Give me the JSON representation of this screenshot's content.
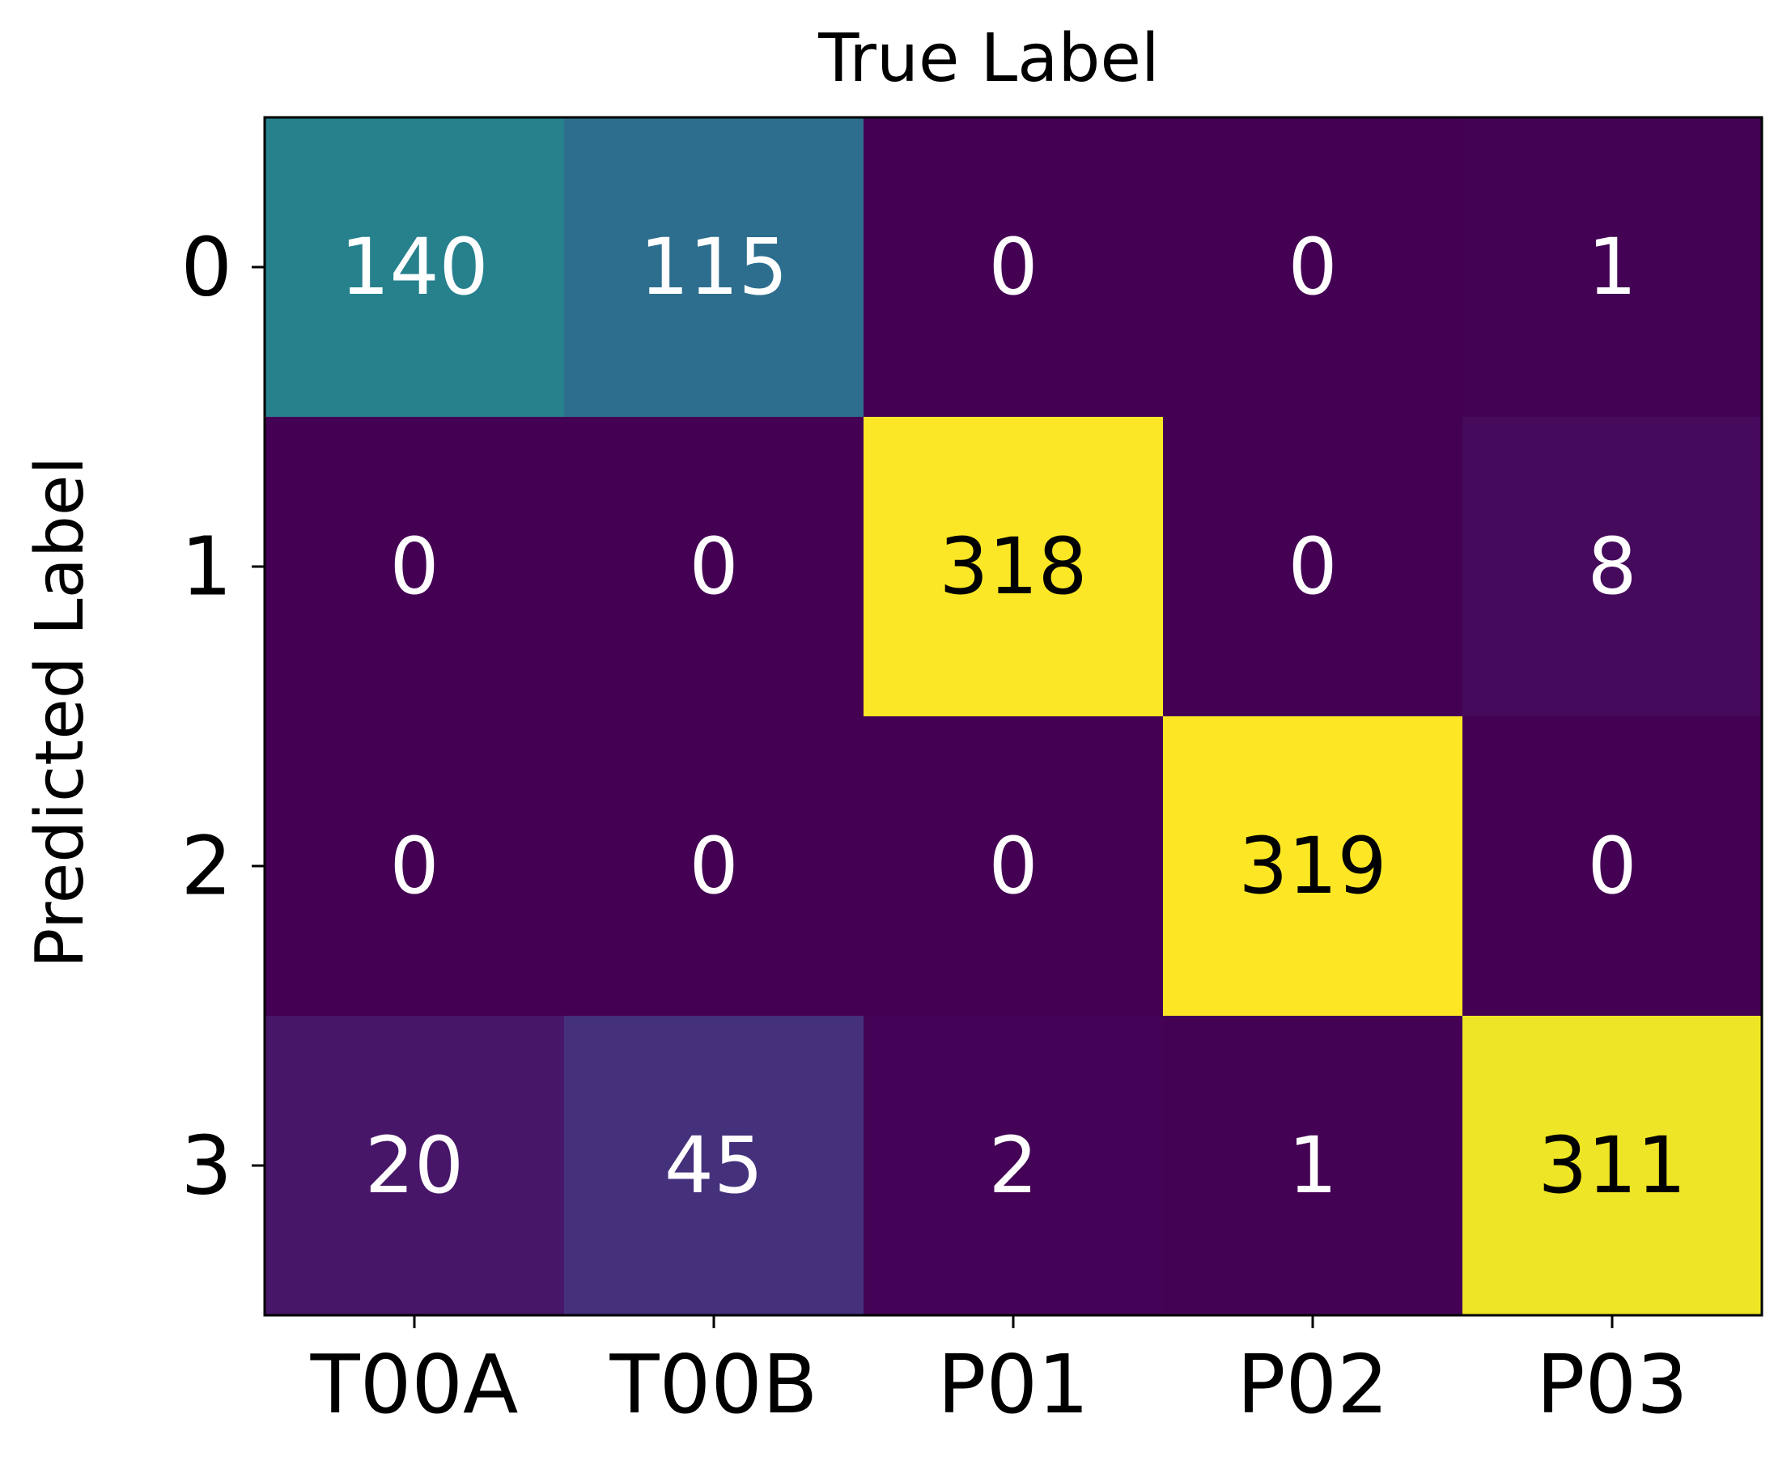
{
  "chart_data": {
    "type": "heatmap",
    "title": "True Label",
    "xlabel": "True Label",
    "ylabel": "Predicted Label",
    "x_categories": [
      "T00A",
      "T00B",
      "P01",
      "P02",
      "P03"
    ],
    "y_categories": [
      "0",
      "1",
      "2",
      "3"
    ],
    "values": [
      [
        140,
        115,
        0,
        0,
        1
      ],
      [
        0,
        0,
        318,
        0,
        8
      ],
      [
        0,
        0,
        0,
        319,
        0
      ],
      [
        20,
        45,
        2,
        1,
        311
      ]
    ],
    "colormap": "viridis",
    "value_range": [
      0,
      319
    ],
    "grid": false,
    "legend": "none",
    "text_colors": {
      "light": "#ffffff",
      "dark": "#000000"
    }
  }
}
